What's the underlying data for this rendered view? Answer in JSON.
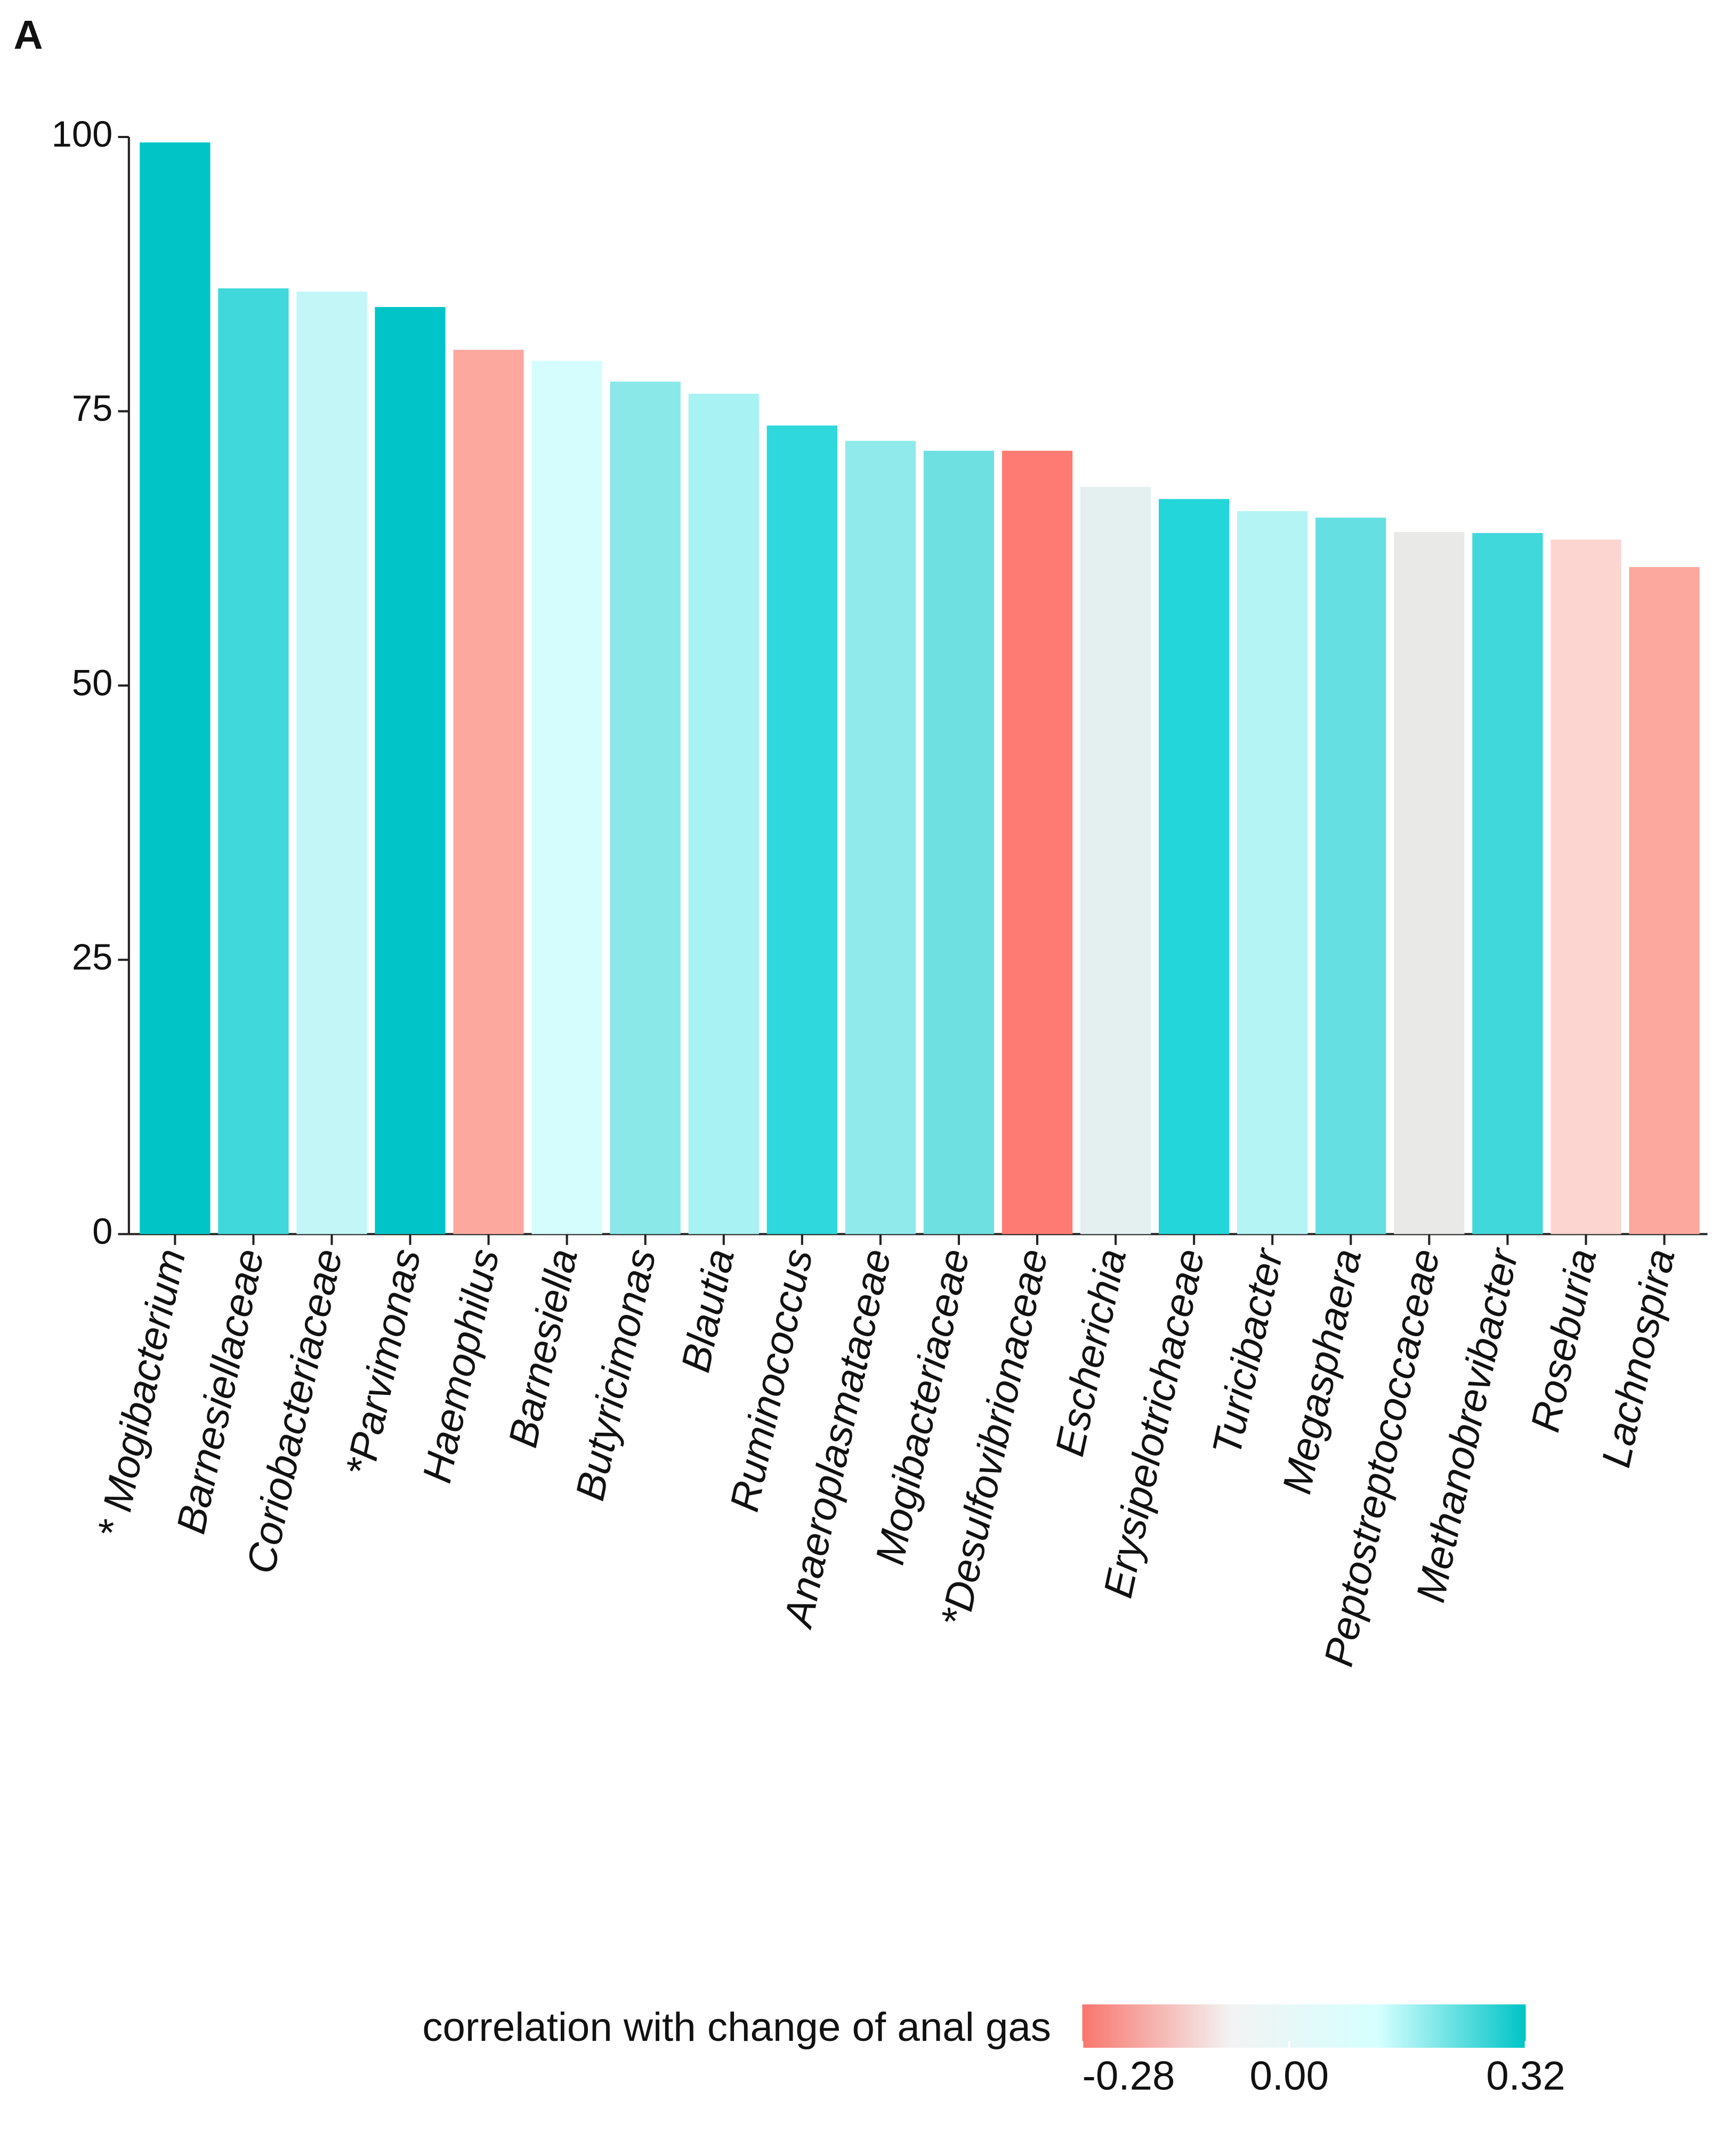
{
  "chart_data": {
    "type": "bar",
    "panel_label": "A",
    "categories": [
      "* Mogibacterium",
      "Barnesiellaceae",
      "Coriobacteriaceae",
      "*Parvimonas",
      "Haemophilus",
      "Barnesiella",
      "Butyricimonas",
      "Blautia",
      "Ruminococcus",
      "Anaeroplasmataceae",
      "Mogibacteriaceae",
      "*Desulfovibrionaceae",
      "Escherichia",
      "Erysipelotrichaceae",
      "Turicibacter",
      "Megasphaera",
      "Peptostreptococcaceae",
      "Methanobrevibacter",
      "Roseburia",
      "Lachnospira"
    ],
    "values": [
      99.5,
      86.2,
      85.9,
      84.5,
      80.6,
      79.6,
      77.7,
      76.6,
      73.7,
      72.3,
      71.4,
      71.4,
      68.1,
      67.0,
      65.9,
      65.3,
      64.0,
      63.9,
      63.3,
      60.8
    ],
    "colors": [
      "#00c4c6",
      "#40d8da",
      "#c2f6f7",
      "#00c4c7",
      "#fca89f",
      "#d6fdfd",
      "#8ae8e9",
      "#a9f2f3",
      "#2ed8dc",
      "#90eaeb",
      "#6fe0e2",
      "#fd7b72",
      "#e3f0ef",
      "#22d6da",
      "#b5f4f5",
      "#65dfe2",
      "#e9e9e7",
      "#40d8db",
      "#fcd5d0",
      "#fca89e"
    ],
    "ylim": [
      0,
      100
    ],
    "yticks": [
      0,
      25,
      50,
      75,
      100
    ],
    "grid": false,
    "colorbar": {
      "title": "correlation with change of anal gas",
      "lim": [
        -0.28,
        0.32
      ],
      "ticks": [
        -0.28,
        {
          "value": 0,
          "label": "0.00"
        },
        0.32
      ],
      "colors": [
        "#f8766d",
        "#f3f3f3",
        "#d6ffff",
        "#00c4c6"
      ]
    }
  }
}
